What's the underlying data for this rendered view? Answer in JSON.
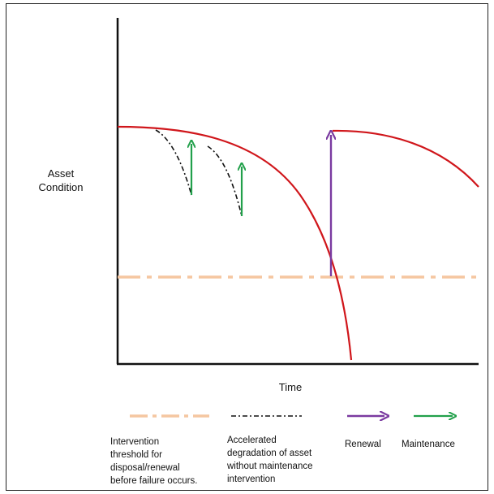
{
  "axes": {
    "ylabel_line1": "Asset",
    "ylabel_line2": "Condition",
    "xlabel": "Time"
  },
  "legend": {
    "threshold": [
      "Intervention",
      "threshold for",
      "disposal/renewal",
      "before failure occurs."
    ],
    "accelerated": [
      "Accelerated",
      "degradation of asset",
      "without maintenance",
      "intervention"
    ],
    "renewal": "Renewal",
    "maintenance": "Maintenance"
  },
  "colors": {
    "curve": "#d0161b",
    "threshold": "#f5c6a0",
    "maintenance": "#22a04b",
    "renewal": "#7a3aa0",
    "accelerated": "#111111",
    "axis": "#111111"
  }
}
